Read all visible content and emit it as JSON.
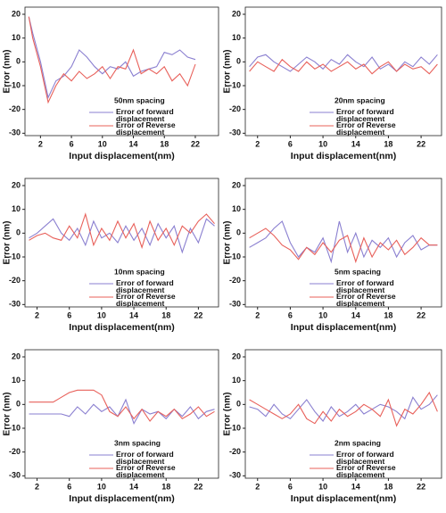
{
  "chart_data": [
    {
      "type": "line",
      "title": "50nm spacing",
      "xlabel": "Input displacement(nm)",
      "ylabel": "Error (nm)",
      "x": [
        0.5,
        1,
        2,
        3,
        4,
        5,
        6,
        7,
        8,
        9,
        10,
        11,
        12,
        13,
        14,
        15,
        16,
        17,
        18,
        19,
        20,
        21,
        22
      ],
      "series": [
        {
          "name": "Error of forward displacement",
          "color": "#8a7fd0",
          "values": [
            19,
            12,
            0,
            -15,
            -8,
            -6,
            -2,
            5,
            2,
            -2,
            -5,
            -2,
            -3,
            0,
            -6,
            -4,
            -3,
            -2,
            4,
            3,
            5,
            2,
            1
          ]
        },
        {
          "name": "Error of Reverse displacement",
          "color": "#e8605a",
          "values": [
            19,
            10,
            -2,
            -17,
            -10,
            -5,
            -8,
            -4,
            -7,
            -5,
            -2,
            -7,
            -2,
            -3,
            5,
            -5,
            -3,
            -5,
            -2,
            -8,
            -5,
            -10,
            -1
          ]
        }
      ],
      "xlim": [
        0,
        25
      ],
      "ylim": [
        -31,
        23
      ],
      "xticks": [
        2,
        6,
        10,
        14,
        18,
        22
      ],
      "yticks": [
        20,
        10,
        0,
        -10,
        -20,
        -30
      ]
    },
    {
      "type": "line",
      "title": "20nm spacing",
      "xlabel": "Input displacement(nm)",
      "ylabel": "Error (nm)",
      "x": [
        1,
        2,
        3,
        4,
        5,
        6,
        7,
        8,
        9,
        10,
        11,
        12,
        13,
        14,
        15,
        16,
        17,
        18,
        19,
        20,
        21,
        22,
        23,
        24
      ],
      "series": [
        {
          "name": "Error of forward displacement",
          "color": "#8a7fd0",
          "values": [
            -2,
            2,
            3,
            0,
            -2,
            -4,
            -1,
            2,
            0,
            -3,
            1,
            -1,
            3,
            0,
            -2,
            2,
            -3,
            -1,
            -4,
            0,
            -2,
            2,
            -1,
            3
          ]
        },
        {
          "name": "Error of Reverse displacement",
          "color": "#e8605a",
          "values": [
            -4,
            0,
            -2,
            -4,
            1,
            -2,
            -4,
            0,
            -3,
            -1,
            -4,
            -2,
            0,
            -3,
            -1,
            -5,
            -2,
            0,
            -4,
            -1,
            -3,
            -2,
            -5,
            -1
          ]
        }
      ],
      "xlim": [
        0.5,
        24.5
      ],
      "ylim": [
        -31,
        23
      ],
      "xticks": [
        2,
        6,
        10,
        14,
        18,
        22
      ],
      "yticks": [
        20,
        10,
        0,
        -10,
        -20,
        -30
      ]
    },
    {
      "type": "line",
      "title": "10nm spacing",
      "xlabel": "Input displacement(nm)",
      "ylabel": "Error (nm)",
      "x": [
        1,
        2,
        3,
        4,
        5,
        6,
        7,
        8,
        9,
        10,
        11,
        12,
        13,
        14,
        15,
        16,
        17,
        18,
        19,
        20,
        21,
        22,
        23,
        24
      ],
      "series": [
        {
          "name": "Error of forward displacement",
          "color": "#8a7fd0",
          "values": [
            -2,
            0,
            3,
            6,
            0,
            -3,
            2,
            -5,
            5,
            -2,
            0,
            -4,
            3,
            -3,
            2,
            -5,
            4,
            -2,
            3,
            -8,
            2,
            -4,
            6,
            3
          ]
        },
        {
          "name": "Error of Reverse displacement",
          "color": "#e8605a",
          "values": [
            -3,
            -1,
            0,
            -2,
            -3,
            3,
            -2,
            8,
            -5,
            2,
            -3,
            5,
            -2,
            4,
            -6,
            5,
            -3,
            2,
            -5,
            3,
            0,
            5,
            8,
            4
          ]
        }
      ],
      "xlim": [
        0.5,
        24.5
      ],
      "ylim": [
        -31,
        23
      ],
      "xticks": [
        2,
        6,
        10,
        14,
        18,
        22
      ],
      "yticks": [
        20,
        10,
        0,
        -10,
        -20,
        -30
      ]
    },
    {
      "type": "line",
      "title": "5nm spacing",
      "xlabel": "Input displacement(nm)",
      "ylabel": "Error (nm)",
      "x": [
        1,
        2,
        3,
        4,
        5,
        6,
        7,
        8,
        9,
        10,
        11,
        12,
        13,
        14,
        15,
        16,
        17,
        18,
        19,
        20,
        21,
        22,
        23,
        24
      ],
      "series": [
        {
          "name": "Error of forward displacement",
          "color": "#8a7fd0",
          "values": [
            -6,
            -4,
            -2,
            2,
            5,
            -4,
            -10,
            -6,
            -8,
            -2,
            -12,
            5,
            -8,
            0,
            -10,
            -3,
            -6,
            -2,
            -10,
            -4,
            -1,
            -7,
            -5,
            -5
          ]
        },
        {
          "name": "Error of Reverse displacement",
          "color": "#e8605a",
          "values": [
            -2,
            0,
            2,
            -1,
            -5,
            -7,
            -11,
            -6,
            -9,
            -4,
            -8,
            -3,
            -1,
            -12,
            -2,
            -10,
            -4,
            -7,
            -3,
            -9,
            -6,
            -2,
            -5,
            -5
          ]
        }
      ],
      "xlim": [
        0.5,
        24.5
      ],
      "ylim": [
        -31,
        23
      ],
      "xticks": [
        2,
        6,
        10,
        14,
        18,
        22
      ],
      "yticks": [
        20,
        10,
        0,
        -10,
        -20,
        -30
      ]
    },
    {
      "type": "line",
      "title": "3nm spacing",
      "xlabel": "Input displacement(nm)",
      "ylabel": "Error (nm)",
      "x": [
        1,
        2,
        3,
        4,
        5,
        6,
        7,
        8,
        9,
        10,
        11,
        12,
        13,
        14,
        15,
        16,
        17,
        18,
        19,
        20,
        21,
        22,
        23,
        24
      ],
      "series": [
        {
          "name": "Error of forward displacement",
          "color": "#8a7fd0",
          "values": [
            -4,
            -4,
            -4,
            -4,
            -4,
            -5,
            -1,
            -4,
            0,
            -3,
            -1,
            -5,
            2,
            -8,
            -2,
            -4,
            -3,
            -6,
            -2,
            -5,
            -1,
            -6,
            -3,
            -2
          ]
        },
        {
          "name": "Error of Reverse displacement",
          "color": "#e8605a",
          "values": [
            1,
            1,
            1,
            1,
            3,
            5,
            6,
            6,
            6,
            4,
            -3,
            -5,
            -1,
            -6,
            -2,
            -7,
            -3,
            -5,
            -2,
            -6,
            -4,
            -1,
            -5,
            -3
          ]
        }
      ],
      "xlim": [
        0.5,
        24.5
      ],
      "ylim": [
        -31,
        23
      ],
      "xticks": [
        2,
        6,
        10,
        14,
        18,
        22
      ],
      "yticks": [
        20,
        10,
        0,
        -10,
        -20,
        -30
      ]
    },
    {
      "type": "line",
      "title": "2nm spacing",
      "xlabel": "Input displacement(nm)",
      "ylabel": "Error (nm)",
      "x": [
        1,
        2,
        3,
        4,
        5,
        6,
        7,
        8,
        9,
        10,
        11,
        12,
        13,
        14,
        15,
        16,
        17,
        18,
        19,
        20,
        21,
        22,
        23,
        24
      ],
      "series": [
        {
          "name": "Error of forward displacement",
          "color": "#8a7fd0",
          "values": [
            -1,
            -2,
            -5,
            0,
            -4,
            -6,
            -2,
            2,
            -3,
            -7,
            -1,
            -5,
            -3,
            0,
            -4,
            -2,
            0,
            -1,
            -3,
            -6,
            3,
            -2,
            0,
            4
          ]
        },
        {
          "name": "Error of Reverse displacement",
          "color": "#e8605a",
          "values": [
            2,
            0,
            -2,
            -4,
            -6,
            -4,
            0,
            -6,
            -8,
            -3,
            -7,
            -2,
            -5,
            -3,
            0,
            -2,
            -5,
            2,
            -9,
            -2,
            -4,
            0,
            5,
            -3
          ]
        }
      ],
      "xlim": [
        0.5,
        24.5
      ],
      "ylim": [
        -31,
        23
      ],
      "xticks": [
        2,
        6,
        10,
        14,
        18,
        22
      ],
      "yticks": [
        20,
        10,
        0,
        -10,
        -20,
        -30
      ]
    }
  ]
}
